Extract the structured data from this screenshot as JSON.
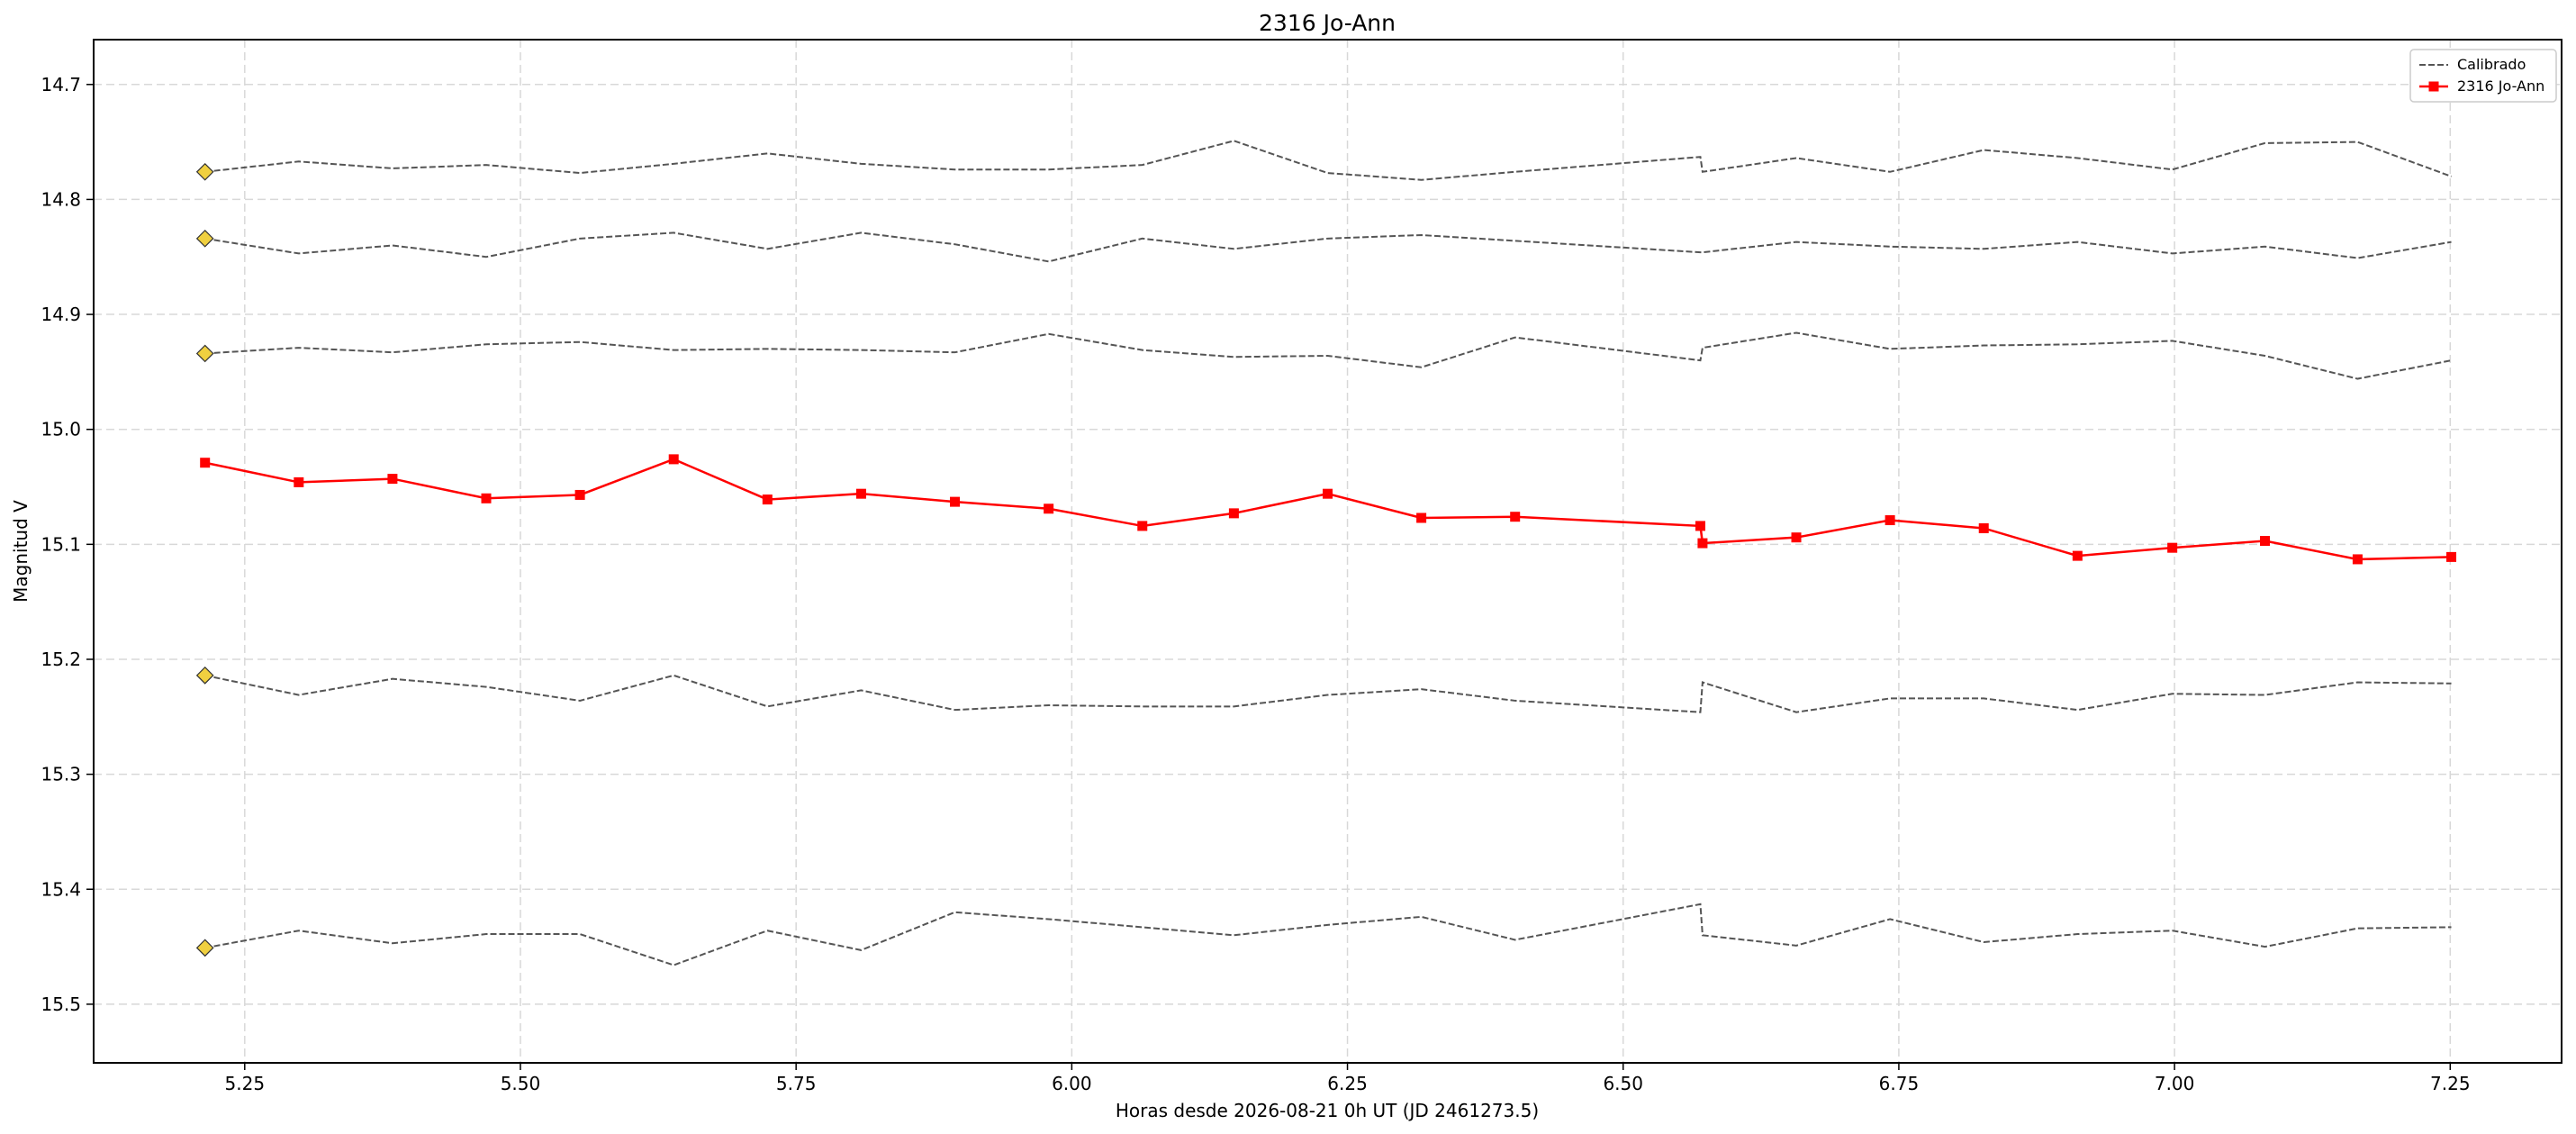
{
  "chart_data": {
    "type": "line",
    "title": "2316 Jo-Ann",
    "xlabel": "Horas desde 2026-08-21 0h UT (JD 2461273.5)",
    "ylabel": "Magnitud V",
    "x": [
      5.214,
      5.299,
      5.384,
      5.469,
      5.554,
      5.639,
      5.724,
      5.809,
      5.894,
      5.979,
      6.064,
      6.147,
      6.232,
      6.317,
      6.402,
      6.57,
      6.572,
      6.657,
      6.742,
      6.827,
      6.912,
      6.998,
      7.082,
      7.166,
      7.251
    ],
    "xlim": [
      5.113,
      7.351
    ],
    "xticks": [
      {
        "value": 5.25,
        "label": "5.25"
      },
      {
        "value": 5.5,
        "label": "5.50"
      },
      {
        "value": 5.75,
        "label": "5.75"
      },
      {
        "value": 6,
        "label": "6.00"
      },
      {
        "value": 6.25,
        "label": "6.25"
      },
      {
        "value": 6.5,
        "label": "6.50"
      },
      {
        "value": 6.75,
        "label": "6.75"
      },
      {
        "value": 7,
        "label": "7.00"
      },
      {
        "value": 7.25,
        "label": "7.25"
      }
    ],
    "ylim": [
      15.551,
      14.661
    ],
    "yticks": [
      14.7,
      14.8,
      14.9,
      {
        "value": 15,
        "label": "15.0"
      },
      15.1,
      15.2,
      15.3,
      15.4,
      15.5
    ],
    "grid": true,
    "legend": "upper right",
    "calibrated": {
      "name": "Calibrado",
      "color": "#555555",
      "marker_color": "#f0d040",
      "series": [
        {
          "values": [
            14.776,
            14.767,
            14.773,
            14.77,
            14.777,
            14.769,
            14.76,
            14.769,
            14.774,
            14.774,
            14.77,
            14.749,
            14.777,
            14.783,
            14.776,
            14.763,
            14.776,
            14.764,
            14.776,
            14.757,
            14.764,
            14.774,
            14.751,
            14.75,
            14.78
          ]
        },
        {
          "values": [
            14.834,
            14.847,
            14.84,
            14.85,
            14.834,
            14.829,
            14.843,
            14.829,
            14.839,
            14.854,
            14.834,
            14.843,
            14.834,
            14.831,
            14.836,
            14.846,
            14.846,
            14.837,
            14.841,
            14.843,
            14.837,
            14.847,
            14.841,
            14.851,
            14.837
          ]
        },
        {
          "values": [
            14.934,
            14.929,
            14.933,
            14.926,
            14.924,
            14.931,
            14.93,
            14.931,
            14.933,
            14.917,
            14.931,
            14.937,
            14.936,
            14.946,
            14.92,
            14.94,
            14.929,
            14.916,
            14.93,
            14.927,
            14.926,
            14.923,
            14.936,
            14.956,
            14.94
          ]
        },
        {
          "values": [
            15.214,
            15.231,
            15.217,
            15.224,
            15.236,
            15.214,
            15.241,
            15.227,
            15.244,
            15.24,
            15.241,
            15.241,
            15.231,
            15.226,
            15.236,
            15.246,
            15.22,
            15.246,
            15.234,
            15.234,
            15.244,
            15.23,
            15.231,
            15.22,
            15.221
          ]
        },
        {
          "values": [
            15.451,
            15.436,
            15.447,
            15.439,
            15.439,
            15.466,
            15.436,
            15.453,
            15.42,
            15.426,
            15.433,
            15.44,
            15.431,
            15.424,
            15.444,
            15.413,
            15.44,
            15.449,
            15.426,
            15.446,
            15.439,
            15.436,
            15.45,
            15.434,
            15.433
          ]
        }
      ]
    },
    "target": {
      "name": "2316 Jo-Ann",
      "color": "#ff0000",
      "values": [
        15.029,
        15.046,
        15.043,
        15.06,
        15.057,
        15.026,
        15.061,
        15.056,
        15.063,
        15.069,
        15.084,
        15.073,
        15.056,
        15.077,
        15.076,
        15.084,
        15.099,
        15.094,
        15.079,
        15.086,
        15.11,
        15.103,
        15.097,
        15.113,
        15.111
      ]
    }
  }
}
